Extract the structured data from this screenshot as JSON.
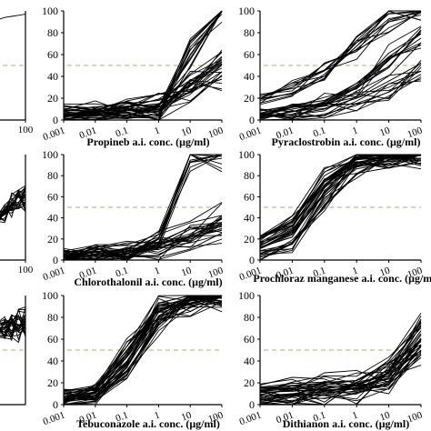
{
  "chart_data": [
    {
      "type": "line",
      "panel_id": "left-top",
      "xlabel": "",
      "ylabel": "",
      "x_scale": "log",
      "xticks": [
        "100"
      ],
      "yticks": [],
      "ylim": [
        0,
        100
      ],
      "reference_line": {
        "y": 50,
        "style": "dashed",
        "color": "#c9b98a"
      },
      "series_count": 1,
      "series": [
        {
          "x": [
            0.001,
            0.01,
            0.1,
            1,
            10,
            100
          ],
          "y": [
            90,
            92,
            94,
            95,
            96,
            97
          ]
        }
      ]
    },
    {
      "type": "line",
      "panel_id": "propineb",
      "xlabel": "Propineb a.i. conc. (μg/ml)",
      "ylabel": "",
      "x_scale": "log",
      "xticks": [
        "0.001",
        "0.01",
        "0.1",
        "1",
        "10",
        "100"
      ],
      "yticks": [
        "0",
        "20",
        "40",
        "60",
        "80",
        "100"
      ],
      "ylim": [
        0,
        100
      ],
      "reference_line": {
        "y": 50,
        "style": "dashed",
        "color": "#c9b98a"
      },
      "series_count": 38,
      "series": [
        {
          "x": [
            0.001,
            0.01,
            0.1,
            1,
            10,
            100
          ],
          "y": [
            3,
            4,
            5,
            8,
            60,
            100
          ]
        },
        {
          "x": [
            0.001,
            0.01,
            0.1,
            1,
            10,
            100
          ],
          "y": [
            5,
            6,
            7,
            10,
            35,
            55
          ]
        },
        {
          "x": [
            0.001,
            0.01,
            0.1,
            1,
            10,
            100
          ],
          "y": [
            8,
            10,
            12,
            15,
            25,
            40
          ]
        }
      ]
    },
    {
      "type": "line",
      "panel_id": "pyraclostrobin",
      "xlabel": "Pyraclostrobin a.i. conc. (μg/ml)",
      "ylabel": "",
      "x_scale": "log",
      "xticks": [
        "0.001",
        "0.01",
        "0.1",
        "1",
        "10",
        "100"
      ],
      "yticks": [
        "0",
        "20",
        "40",
        "60",
        "80",
        "100"
      ],
      "ylim": [
        0,
        100
      ],
      "reference_line": {
        "y": 50,
        "style": "dashed",
        "color": "#c9b98a"
      },
      "series_count": 38,
      "series": [
        {
          "x": [
            0.001,
            0.01,
            0.1,
            1,
            10,
            100
          ],
          "y": [
            20,
            30,
            45,
            65,
            90,
            100
          ]
        },
        {
          "x": [
            0.001,
            0.01,
            0.1,
            1,
            10,
            100
          ],
          "y": [
            5,
            10,
            15,
            30,
            55,
            75
          ]
        },
        {
          "x": [
            0.001,
            0.01,
            0.1,
            1,
            10,
            100
          ],
          "y": [
            2,
            5,
            10,
            20,
            30,
            45
          ]
        }
      ]
    },
    {
      "type": "line",
      "panel_id": "left-middle",
      "xlabel": "",
      "ylabel": "",
      "x_scale": "log",
      "xticks": [
        "100"
      ],
      "yticks": [],
      "ylim": [
        0,
        100
      ],
      "reference_line": {
        "y": 50,
        "style": "dashed",
        "color": "#c9b98a"
      },
      "series_count": 25,
      "series": [
        {
          "x": [
            0.001,
            0.01,
            0.1,
            1,
            10,
            100
          ],
          "y": [
            35,
            40,
            45,
            50,
            55,
            60
          ]
        }
      ]
    },
    {
      "type": "line",
      "panel_id": "chlorothalonil",
      "xlabel": "Chlorothalonil a.i. conc. (μg/ml)",
      "ylabel": "",
      "x_scale": "log",
      "xticks": [
        "0.001",
        "0.01",
        "0.1",
        "1",
        "10",
        "100"
      ],
      "yticks": [
        "0",
        "20",
        "40",
        "60",
        "80",
        "100"
      ],
      "ylim": [
        0,
        100
      ],
      "reference_line": {
        "y": 50,
        "style": "dashed",
        "color": "#c9b98a"
      },
      "series_count": 38,
      "series": [
        {
          "x": [
            0.001,
            0.01,
            0.1,
            1,
            10,
            100
          ],
          "y": [
            3,
            5,
            8,
            12,
            20,
            30
          ]
        },
        {
          "x": [
            0.001,
            0.01,
            0.1,
            1,
            10,
            100
          ],
          "y": [
            5,
            8,
            10,
            15,
            25,
            40
          ]
        },
        {
          "x": [
            0.001,
            0.01,
            0.1,
            1,
            10,
            100
          ],
          "y": [
            2,
            4,
            6,
            20,
            100,
            100
          ]
        }
      ]
    },
    {
      "type": "line",
      "panel_id": "prochloraz",
      "xlabel": "Prochloraz manganese a.i. conc. (μg/ml)",
      "ylabel": "",
      "x_scale": "log",
      "xticks": [
        "0.001",
        "0.01",
        "0.1",
        "1",
        "10",
        "100"
      ],
      "yticks": [
        "0",
        "20",
        "40",
        "60",
        "80",
        "100"
      ],
      "ylim": [
        0,
        100
      ],
      "reference_line": {
        "y": 50,
        "style": "dashed",
        "color": "#c9b98a"
      },
      "series_count": 38,
      "series": [
        {
          "x": [
            0.001,
            0.01,
            0.1,
            1,
            10,
            100
          ],
          "y": [
            12,
            25,
            70,
            95,
            98,
            100
          ]
        },
        {
          "x": [
            0.001,
            0.01,
            0.1,
            1,
            10,
            100
          ],
          "y": [
            5,
            15,
            55,
            90,
            97,
            99
          ]
        },
        {
          "x": [
            0.001,
            0.01,
            0.1,
            1,
            10,
            100
          ],
          "y": [
            20,
            35,
            80,
            97,
            99,
            100
          ]
        }
      ]
    },
    {
      "type": "line",
      "panel_id": "left-bottom",
      "xlabel": "",
      "ylabel": "",
      "x_scale": "log",
      "xticks": [],
      "yticks": [],
      "ylim": [
        0,
        100
      ],
      "reference_line": {
        "y": 50,
        "style": "dashed",
        "color": "#c9b98a"
      },
      "series_count": 25,
      "series": [
        {
          "x": [
            0.001,
            0.01,
            0.1,
            1,
            10,
            100
          ],
          "y": [
            68,
            70,
            71,
            72,
            73,
            74
          ]
        }
      ]
    },
    {
      "type": "line",
      "panel_id": "tebuconazole",
      "xlabel": "Tebuconazole a.i. conc. (μg/ml)",
      "ylabel": "",
      "x_scale": "log",
      "xticks": [
        "0.001",
        "0.01",
        "0.1",
        "1",
        "10",
        "100"
      ],
      "yticks": [
        "0",
        "20",
        "40",
        "60",
        "80",
        "100"
      ],
      "ylim": [
        0,
        100
      ],
      "reference_line": {
        "y": 50,
        "style": "dashed",
        "color": "#c9b98a"
      },
      "series_count": 38,
      "series": [
        {
          "x": [
            0.001,
            0.01,
            0.1,
            1,
            10,
            100
          ],
          "y": [
            5,
            10,
            40,
            85,
            95,
            100
          ]
        },
        {
          "x": [
            0.001,
            0.01,
            0.1,
            1,
            10,
            100
          ],
          "y": [
            3,
            8,
            30,
            75,
            95,
            100
          ]
        },
        {
          "x": [
            0.001,
            0.01,
            0.1,
            1,
            10,
            100
          ],
          "y": [
            10,
            15,
            50,
            90,
            98,
            100
          ]
        }
      ]
    },
    {
      "type": "line",
      "panel_id": "dithianon",
      "xlabel": "Dithianon a.i. conc. (μg/ml)",
      "ylabel": "",
      "x_scale": "log",
      "xticks": [
        "0.001",
        "0.01",
        "0.1",
        "1",
        "10",
        "100"
      ],
      "yticks": [
        "0",
        "20",
        "40",
        "60",
        "80",
        "100"
      ],
      "ylim": [
        0,
        100
      ],
      "reference_line": {
        "y": 50,
        "style": "dashed",
        "color": "#c9b98a"
      },
      "series_count": 38,
      "series": [
        {
          "x": [
            0.001,
            0.01,
            0.1,
            1,
            10,
            100
          ],
          "y": [
            8,
            10,
            12,
            15,
            25,
            60
          ]
        },
        {
          "x": [
            0.001,
            0.01,
            0.1,
            1,
            10,
            100
          ],
          "y": [
            15,
            17,
            20,
            22,
            35,
            75
          ]
        },
        {
          "x": [
            0.001,
            0.01,
            0.1,
            1,
            10,
            100
          ],
          "y": [
            2,
            4,
            6,
            10,
            20,
            50
          ]
        }
      ]
    }
  ],
  "colors": {
    "line": "#000000",
    "axis": "#000000",
    "reference": "#c9b98a",
    "background": "#ffffff"
  }
}
